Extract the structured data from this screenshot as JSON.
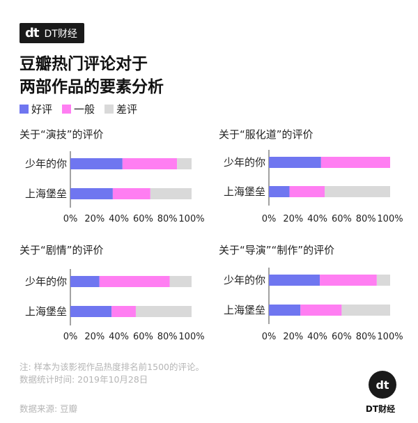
{
  "brand": {
    "mark": "dt",
    "name": "DT财经"
  },
  "title": {
    "line1": "豆瓣热门评论对于",
    "line2": "两部作品的要素分析"
  },
  "legend": [
    {
      "label": "好评",
      "color": "#6f76f0"
    },
    {
      "label": "一般",
      "color": "#ff7ef2"
    },
    {
      "label": "差评",
      "color": "#d9d9d9"
    }
  ],
  "chart_data": [
    {
      "type": "bar",
      "orientation": "horizontal",
      "stacked": true,
      "title": "关于“演技”的评价",
      "categories": [
        "少年的你",
        "上海堡垒"
      ],
      "series": [
        {
          "name": "好评",
          "values": [
            43,
            35
          ]
        },
        {
          "name": "一般",
          "values": [
            45,
            31
          ]
        },
        {
          "name": "差评",
          "values": [
            12,
            34
          ]
        }
      ],
      "xlim": [
        0,
        100
      ],
      "xticks": [
        "0%",
        "20%",
        "40%",
        "60%",
        "80%",
        "100%"
      ]
    },
    {
      "type": "bar",
      "orientation": "horizontal",
      "stacked": true,
      "title": "关于“服化道”的评价",
      "categories": [
        "少年的你",
        "上海堡垒"
      ],
      "series": [
        {
          "name": "好评",
          "values": [
            43,
            17
          ]
        },
        {
          "name": "一般",
          "values": [
            57,
            29
          ]
        },
        {
          "name": "差评",
          "values": [
            0,
            54
          ]
        }
      ],
      "xlim": [
        0,
        100
      ],
      "xticks": [
        "0%",
        "20%",
        "40%",
        "60%",
        "80%",
        "100%"
      ]
    },
    {
      "type": "bar",
      "orientation": "horizontal",
      "stacked": true,
      "title": "关于“剧情”的评价",
      "categories": [
        "少年的你",
        "上海堡垒"
      ],
      "series": [
        {
          "name": "好评",
          "values": [
            24,
            34
          ]
        },
        {
          "name": "一般",
          "values": [
            58,
            20
          ]
        },
        {
          "name": "差评",
          "values": [
            18,
            46
          ]
        }
      ],
      "xlim": [
        0,
        100
      ],
      "xticks": [
        "0%",
        "20%",
        "40%",
        "60%",
        "80%",
        "100%"
      ]
    },
    {
      "type": "bar",
      "orientation": "horizontal",
      "stacked": true,
      "title": "关于“导演”“制作”的评价",
      "categories": [
        "少年的你",
        "上海堡垒"
      ],
      "series": [
        {
          "name": "好评",
          "values": [
            42,
            26
          ]
        },
        {
          "name": "一般",
          "values": [
            47,
            34
          ]
        },
        {
          "name": "差评",
          "values": [
            11,
            40
          ]
        }
      ],
      "xlim": [
        0,
        100
      ],
      "xticks": [
        "0%",
        "20%",
        "40%",
        "60%",
        "80%",
        "100%"
      ]
    }
  ],
  "notes": {
    "line1": "注: 样本为该影视作品热度排名前1500的评论。",
    "line2": "数据统计时间: 2019年10月28日"
  },
  "source": "数据来源: 豆瓣"
}
